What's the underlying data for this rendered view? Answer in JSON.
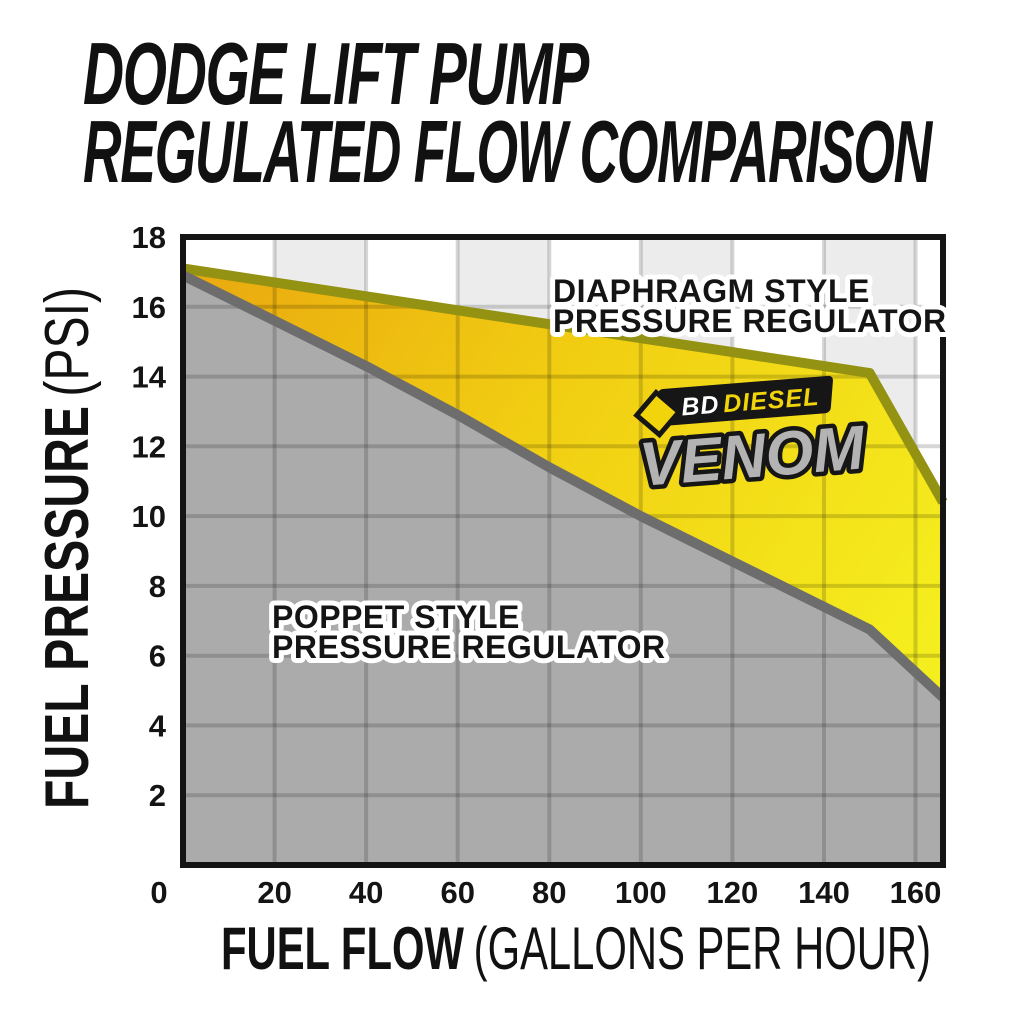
{
  "title": {
    "line1": "DODGE LIFT PUMP",
    "line2": "REGULATED FLOW COMPARISON"
  },
  "logo": {
    "bd": "BD",
    "diesel": "DIESEL",
    "venom": "VENOM"
  },
  "colors": {
    "background": "#ffffff",
    "band_white": "#ffffff",
    "band_light": "#ececec",
    "grid_overlay": "rgba(0,0,0,0.16)",
    "frame": "#141414",
    "text": "#111111",
    "tick_text": "#141414",
    "label_text": "#141414",
    "label_outline": "#ffffff",
    "diaphragm_line": "#949212",
    "diaphragm_fill_stops": [
      "#e9a70f",
      "#f1cd12",
      "#f5ee1e"
    ],
    "poppet_line": "#6d6d6d",
    "poppet_fill": "#ababab",
    "logo_black": "#161616",
    "logo_white": "#ffffff",
    "logo_yellow": "#f2d40c",
    "venom_fill": "#b3b3b3"
  },
  "chart_data": {
    "type": "area",
    "title": "DODGE LIFT PUMP REGULATED FLOW COMPARISON",
    "xlabel": "FUEL FLOW (GALLONS PER HOUR)",
    "ylabel": "FUEL PRESSURE (PSI)",
    "x_label_bold": "FUEL FLOW",
    "x_label_light": "(GALLONS PER HOUR)",
    "y_label_bold": "FUEL PRESSURE",
    "y_label_light": "(PSI)",
    "xlim": [
      0,
      166
    ],
    "ylim": [
      0,
      18
    ],
    "x_ticks": [
      0,
      20,
      40,
      60,
      80,
      100,
      120,
      140,
      160
    ],
    "y_ticks": [
      18,
      16,
      14,
      12,
      10,
      8,
      6,
      4,
      2
    ],
    "band_width_gph": 20,
    "grid": true,
    "legend_position": "inline-annotations",
    "series": [
      {
        "name": "DIAPHRAGM STYLE PRESSURE REGULATOR",
        "label_lines": [
          "DIAPHRAGM STYLE",
          "PRESSURE REGULATOR"
        ],
        "points": [
          [
            0,
            17.1
          ],
          [
            20,
            16.7
          ],
          [
            40,
            16.3
          ],
          [
            60,
            15.9
          ],
          [
            80,
            15.5
          ],
          [
            100,
            15.1
          ],
          [
            120,
            14.7
          ],
          [
            140,
            14.3
          ],
          [
            150,
            14.1
          ],
          [
            166,
            10.4
          ]
        ]
      },
      {
        "name": "POPPET STYLE PRESSURE REGULATOR",
        "label_lines": [
          "POPPET STYLE",
          "PRESSURE REGULATOR"
        ],
        "points": [
          [
            0,
            16.9
          ],
          [
            20,
            15.6
          ],
          [
            40,
            14.3
          ],
          [
            60,
            12.9
          ],
          [
            80,
            11.4
          ],
          [
            100,
            10.0
          ],
          [
            120,
            8.7
          ],
          [
            140,
            7.4
          ],
          [
            150,
            6.75
          ],
          [
            166,
            4.8
          ]
        ]
      }
    ]
  }
}
